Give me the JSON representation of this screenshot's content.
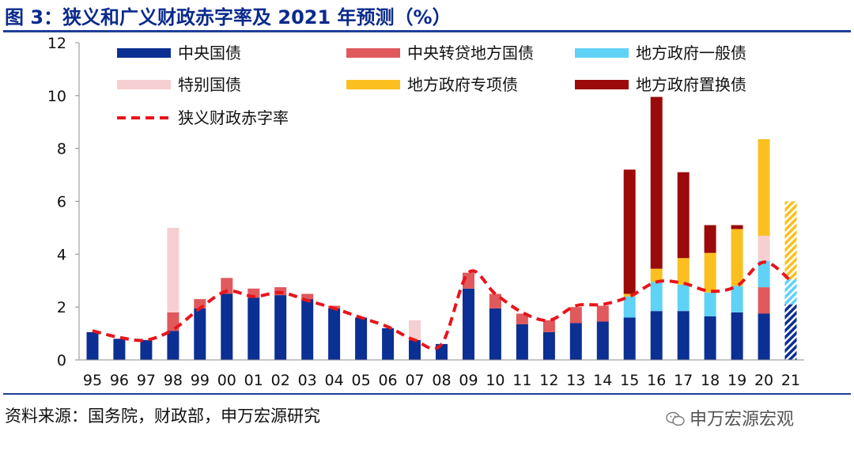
{
  "title": "图 3：狭义和广义财政赤字率及 2021 年预测（%）",
  "source": "资料来源：国务院，财政部，申万宏源研究",
  "watermark": "申万宏源宏观",
  "colors": {
    "central_bond": "#0b2f93",
    "central_on_lent": "#e0595d",
    "local_general": "#5fd2f5",
    "special_bond": "#f5cfd1",
    "local_special": "#fbc01f",
    "local_replacement": "#9b0a0a",
    "deficit_line": "#e8141b",
    "axis": "#8c8c8c",
    "title": "#0a2a8c"
  },
  "chart_data": {
    "type": "bar",
    "stacked": true,
    "categories": [
      "95",
      "96",
      "97",
      "98",
      "99",
      "00",
      "01",
      "02",
      "03",
      "04",
      "05",
      "06",
      "07",
      "08",
      "09",
      "10",
      "11",
      "12",
      "13",
      "14",
      "15",
      "16",
      "17",
      "18",
      "19",
      "20",
      "21"
    ],
    "ylim": [
      0,
      12
    ],
    "yticks": [
      0,
      2,
      4,
      6,
      8,
      10,
      12
    ],
    "legend_position": "top-left",
    "series": [
      {
        "name": "中央国债",
        "key": "central_bond",
        "values": [
          1.05,
          0.8,
          0.75,
          1.1,
          1.95,
          2.5,
          2.35,
          2.45,
          2.3,
          1.95,
          1.6,
          1.2,
          0.75,
          0.6,
          2.7,
          1.95,
          1.35,
          1.05,
          1.4,
          1.45,
          1.6,
          1.85,
          1.85,
          1.65,
          1.8,
          1.75,
          2.1
        ]
      },
      {
        "name": "中央转贷地方国债",
        "key": "central_on_lent",
        "values": [
          0,
          0,
          0,
          0.7,
          0.35,
          0.6,
          0.35,
          0.3,
          0.2,
          0.1,
          0,
          0,
          0,
          0,
          0.6,
          0.55,
          0.4,
          0.45,
          0.6,
          0.6,
          0,
          0,
          0,
          0,
          0,
          1.0,
          0
        ]
      },
      {
        "name": "地方政府一般债",
        "key": "local_general",
        "values": [
          0,
          0,
          0,
          0,
          0,
          0,
          0,
          0,
          0,
          0,
          0,
          0,
          0,
          0,
          0,
          0,
          0,
          0,
          0,
          0,
          0.8,
          1.1,
          1.0,
          0.9,
          1.0,
          1.0,
          0.95
        ]
      },
      {
        "name": "特别国债",
        "key": "special_bond",
        "values": [
          0,
          0,
          0,
          3.2,
          0,
          0,
          0,
          0,
          0,
          0,
          0,
          0,
          0.75,
          0,
          0,
          0,
          0,
          0,
          0,
          0,
          0,
          0,
          0,
          0,
          0,
          0.95,
          0
        ]
      },
      {
        "name": "地方政府专项债",
        "key": "local_special",
        "values": [
          0,
          0,
          0,
          0,
          0,
          0,
          0,
          0,
          0,
          0,
          0,
          0,
          0,
          0,
          0,
          0,
          0,
          0,
          0,
          0,
          0.1,
          0.5,
          1.0,
          1.5,
          2.15,
          3.65,
          2.95
        ]
      },
      {
        "name": "地方政府置换债",
        "key": "local_replacement",
        "values": [
          0,
          0,
          0,
          0,
          0,
          0,
          0,
          0,
          0,
          0,
          0,
          0,
          0,
          0,
          0,
          0,
          0,
          0,
          0,
          0,
          4.7,
          6.5,
          3.25,
          1.05,
          0.15,
          0,
          0
        ]
      }
    ],
    "line": {
      "name": "狭义财政赤字率",
      "key": "deficit_line",
      "values": [
        1.1,
        0.85,
        0.75,
        1.15,
        1.95,
        2.6,
        2.4,
        2.55,
        2.25,
        1.95,
        1.6,
        1.25,
        0.75,
        0.6,
        3.3,
        2.5,
        1.8,
        1.5,
        2.05,
        2.1,
        2.4,
        2.95,
        2.9,
        2.6,
        2.8,
        3.7,
        3.0
      ]
    },
    "forecast_category": "21"
  }
}
